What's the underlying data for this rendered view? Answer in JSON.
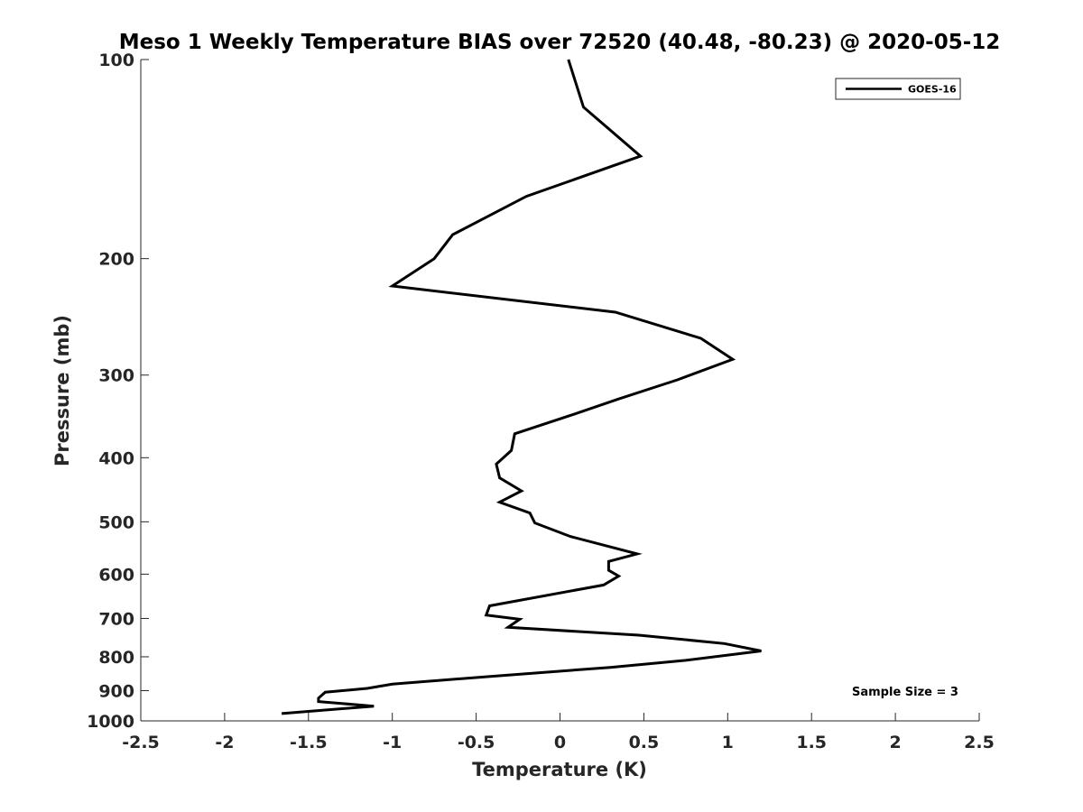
{
  "chart_data": {
    "type": "line",
    "title": "Meso 1 Weekly Temperature BIAS over 72520 (40.48, -80.23) @ 2020-05-12",
    "xlabel": "Temperature (K)",
    "ylabel": "Pressure (mb)",
    "xlim": [
      -2.5,
      2.5
    ],
    "ylim": [
      100,
      1000
    ],
    "y_scale": "log",
    "y_reversed": true,
    "grid": false,
    "x_ticks": [
      -2.5,
      -2,
      -1.5,
      -1,
      -0.5,
      0,
      0.5,
      1,
      1.5,
      2,
      2.5
    ],
    "x_tick_labels": [
      "-2.5",
      "-2",
      "-1.5",
      "-1",
      "-0.5",
      "0",
      "0.5",
      "1",
      "1.5",
      "2",
      "2.5"
    ],
    "y_ticks": [
      100,
      200,
      300,
      400,
      500,
      600,
      700,
      800,
      900,
      1000
    ],
    "y_tick_labels": [
      "100",
      "200",
      "300",
      "400",
      "500",
      "600",
      "700",
      "800",
      "900",
      "1000"
    ],
    "legend": {
      "placement": "top-right",
      "entries": [
        "GOES-16"
      ]
    },
    "annotation": "Sample Size = 3",
    "series": [
      {
        "name": "GOES-16",
        "color": "#000000",
        "points": [
          {
            "x": 0.05,
            "y": 100
          },
          {
            "x": 0.14,
            "y": 118
          },
          {
            "x": 0.48,
            "y": 140
          },
          {
            "x": -0.2,
            "y": 161
          },
          {
            "x": -0.64,
            "y": 184
          },
          {
            "x": -0.75,
            "y": 200
          },
          {
            "x": -1.0,
            "y": 220
          },
          {
            "x": 0.33,
            "y": 241
          },
          {
            "x": 0.84,
            "y": 264
          },
          {
            "x": 1.03,
            "y": 284
          },
          {
            "x": 0.7,
            "y": 305
          },
          {
            "x": 0.35,
            "y": 326
          },
          {
            "x": 0.08,
            "y": 344
          },
          {
            "x": -0.27,
            "y": 368
          },
          {
            "x": -0.29,
            "y": 390
          },
          {
            "x": -0.38,
            "y": 409
          },
          {
            "x": -0.36,
            "y": 429
          },
          {
            "x": -0.23,
            "y": 449
          },
          {
            "x": -0.36,
            "y": 467
          },
          {
            "x": -0.18,
            "y": 485
          },
          {
            "x": -0.15,
            "y": 502
          },
          {
            "x": 0.06,
            "y": 526
          },
          {
            "x": 0.46,
            "y": 559
          },
          {
            "x": 0.29,
            "y": 574
          },
          {
            "x": 0.29,
            "y": 592
          },
          {
            "x": 0.35,
            "y": 604
          },
          {
            "x": 0.26,
            "y": 623
          },
          {
            "x": -0.42,
            "y": 670
          },
          {
            "x": -0.44,
            "y": 692
          },
          {
            "x": -0.24,
            "y": 702
          },
          {
            "x": -0.31,
            "y": 722
          },
          {
            "x": 0.47,
            "y": 742
          },
          {
            "x": 0.98,
            "y": 764
          },
          {
            "x": 1.2,
            "y": 784
          },
          {
            "x": 0.75,
            "y": 810
          },
          {
            "x": 0.3,
            "y": 830
          },
          {
            "x": -0.45,
            "y": 858
          },
          {
            "x": -1.0,
            "y": 880
          },
          {
            "x": -1.15,
            "y": 893
          },
          {
            "x": -1.4,
            "y": 905
          },
          {
            "x": -1.44,
            "y": 924
          },
          {
            "x": -1.44,
            "y": 935
          },
          {
            "x": -1.11,
            "y": 950
          },
          {
            "x": -1.66,
            "y": 975
          }
        ]
      }
    ]
  }
}
